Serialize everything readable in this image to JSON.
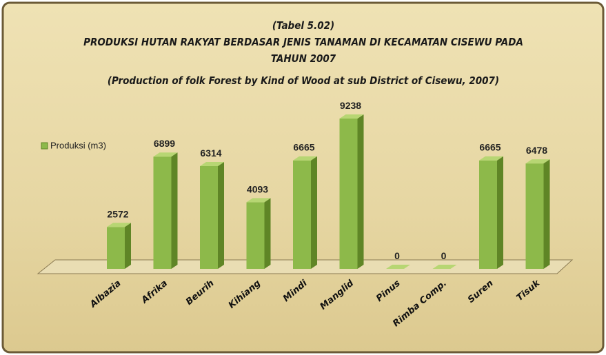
{
  "chart_data": {
    "type": "bar3d",
    "title_lines": [
      "(Tabel 5.02)",
      "PRODUKSI HUTAN RAKYAT BERDASAR JENIS TANAMAN DI KECAMATAN CISEWU PADA",
      "TAHUN 2007",
      "(Production of  folk Forest by Kind of Wood at sub District of Cisewu, 2007)"
    ],
    "categories": [
      "Albazia",
      "Afrika",
      "Beurih",
      "Kihiang",
      "Mindi",
      "Manglid",
      "Pinus",
      "Rimba Comp.",
      "Suren",
      "Tisuk"
    ],
    "series": [
      {
        "name": "Produksi (m3)",
        "color": "#8db94a",
        "values": [
          2572,
          6899,
          6314,
          4093,
          6665,
          9238,
          0,
          0,
          6665,
          6478
        ]
      }
    ],
    "legend": "left"
  }
}
